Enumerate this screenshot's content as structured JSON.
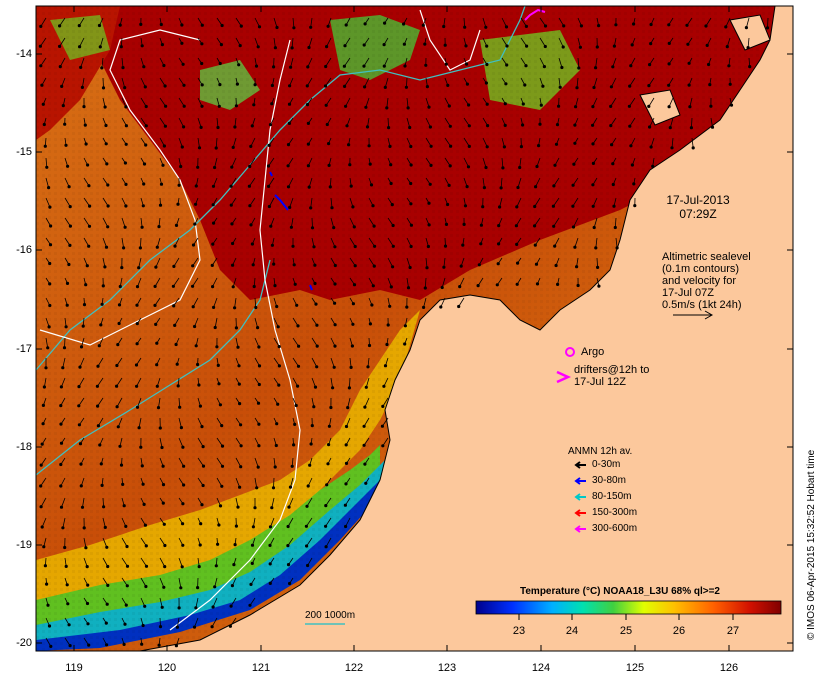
{
  "map": {
    "lat_ticks": [
      "-14",
      "-15",
      "-16",
      "-17",
      "-18",
      "-19",
      "-20"
    ],
    "lon_ticks": [
      "119",
      "120",
      "121",
      "122",
      "123",
      "124",
      "125",
      "126"
    ],
    "datetime_line1": "17-Jul-2013",
    "datetime_line2": "07:29Z",
    "altimetry_lines": [
      "Altimetric sealevel",
      "(0.1m contours)",
      "and velocity for",
      "17-Jul 07Z",
      "0.5m/s (1kt 24h)"
    ],
    "argo_label": "Argo",
    "drifters_line1": "drifters@12h to",
    "drifters_line2": "17-Jul 12Z",
    "anmn_title": "ANMN 12h av.",
    "anmn_items": [
      {
        "label": "0-30m",
        "color": "#000000"
      },
      {
        "label": "30-80m",
        "color": "#0000ff"
      },
      {
        "label": "80-150m",
        "color": "#00c8c8"
      },
      {
        "label": "150-300m",
        "color": "#ff0000"
      },
      {
        "label": "300-600m",
        "color": "#ff00ff"
      }
    ],
    "colorbar_title": "Temperature (°C) NOAA18_L3U 68% ql>=2",
    "colorbar_ticks": [
      "23",
      "24",
      "25",
      "26",
      "27"
    ],
    "isobath_label": "200  1000m",
    "credit": "© IMOS 06-Apr-2015 15:32:52 Hobart time",
    "colors": {
      "land": "#fcc89c",
      "warm_sea": "#a80000",
      "mid_sea": "#d86a10",
      "cool_sea": "#70c020",
      "isobath_200": "#40c0c0",
      "isobath_1000": "#ffffff"
    }
  }
}
